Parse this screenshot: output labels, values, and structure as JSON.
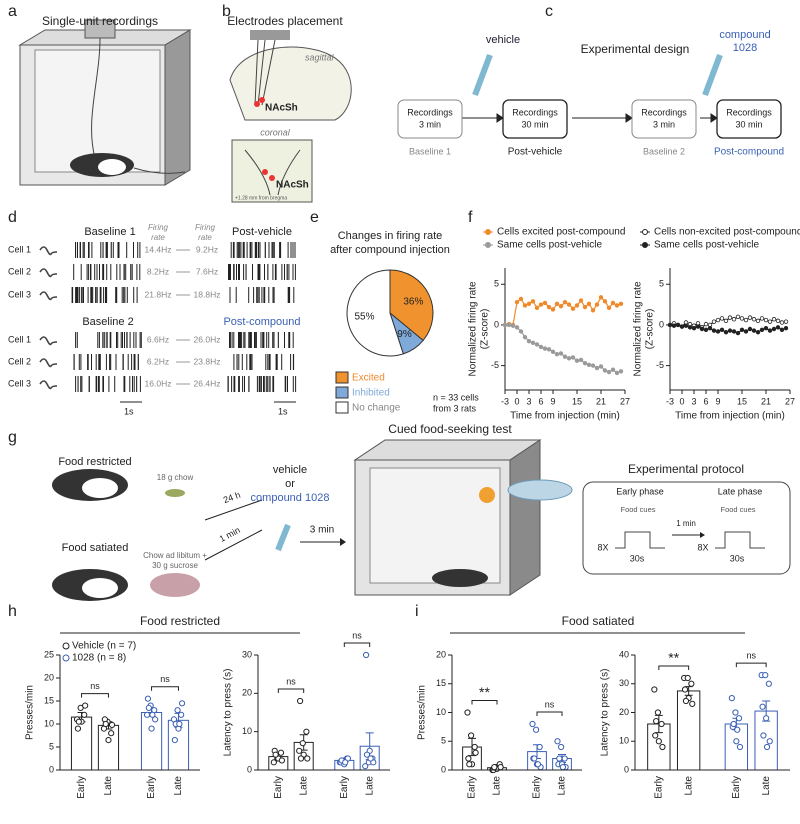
{
  "panel_labels": [
    "a",
    "b",
    "c",
    "d",
    "e",
    "f",
    "g",
    "h",
    "i"
  ],
  "a": {
    "title": "Single-unit recordings"
  },
  "b": {
    "title": "Electrodes placement",
    "sagittal": "sagittal",
    "coronal": "coronal",
    "region": "NAcSh",
    "region2": "NAcSh",
    "coords": "+1.28 mm from bregma"
  },
  "c": {
    "title": "Experimental design",
    "boxes": [
      [
        "Recordings",
        "3 min"
      ],
      [
        "Recordings",
        "30 min"
      ],
      [
        "Recordings",
        "3 min"
      ],
      [
        "Recordings",
        "30 min"
      ]
    ],
    "captions": [
      "Baseline 1",
      "Post-vehicle",
      "Baseline 2",
      "Post-compound"
    ],
    "vehicle": "vehicle",
    "compound": [
      "compound",
      "1028"
    ]
  },
  "d": {
    "headers": [
      "Baseline 1",
      "Post-vehicle",
      "Baseline 2",
      "Post-compound"
    ],
    "rate_headers": [
      [
        "Firing",
        "rate"
      ],
      [
        "Firing",
        "rate"
      ]
    ],
    "cells": [
      "Cell 1",
      "Cell 2",
      "Cell 3",
      "Cell 1",
      "Cell 2",
      "Cell 3"
    ],
    "rates_before": [
      "14.4Hz",
      "8.2Hz",
      "21.8Hz",
      "6.6Hz",
      "6.2Hz",
      "16.0Hz"
    ],
    "rates_after": [
      "9.2Hz",
      "7.6Hz",
      "18.8Hz",
      "26.0Hz",
      "23.8Hz",
      "26.4Hz"
    ],
    "scale": [
      "1s",
      "1s"
    ]
  },
  "g": {
    "restricted": "Food restricted",
    "chow": "18 g chow",
    "satiated": "Food satiated",
    "satiated_food": [
      "Chow ad libitum +",
      "30 g sucrose"
    ],
    "delay1": "24 h",
    "delay2": "1 min",
    "vehicle": "vehicle",
    "or": "or",
    "compound": "compound 1028",
    "wait": "3 min",
    "test": "Cued food-seeking test",
    "protocol": "Experimental protocol",
    "early": "Early phase",
    "late": "Late phase",
    "cues": [
      "Food cues",
      "Food cues"
    ],
    "gap": "1 min",
    "reps": [
      "8X",
      "8X"
    ],
    "dur": [
      "30s",
      "30s"
    ]
  },
  "h": {
    "title": "Food restricted"
  },
  "i": {
    "title": "Food satiated"
  },
  "chart_data": [
    {
      "type": "pie",
      "title": [
        "Changes in firing rate",
        "after compound injection"
      ],
      "categories": [
        "Excited",
        "Inhibited",
        "No change"
      ],
      "values": [
        36,
        9,
        55
      ],
      "value_labels": [
        "36%",
        "9%",
        "55%"
      ],
      "colors": [
        "#f0922e",
        "#7fa9d8",
        "#ffffff"
      ],
      "note": [
        "n = 33 cells",
        "from 3 rats"
      ]
    },
    {
      "type": "line",
      "ylabel": [
        "Normalized firing rate",
        "(Z-score)"
      ],
      "xlabel": "Time from injection (min)",
      "x": [
        -3,
        -2,
        -1,
        0,
        1,
        2,
        3,
        4,
        5,
        6,
        7,
        8,
        9,
        10,
        11,
        12,
        13,
        14,
        15,
        16,
        17,
        18,
        19,
        20,
        21,
        22,
        23,
        24,
        25,
        26
      ],
      "xlim": [
        -3,
        27
      ],
      "xticks": [
        -3,
        0,
        3,
        6,
        9,
        15,
        21,
        27
      ],
      "ylim": [
        -8,
        7
      ],
      "yticks": [
        -5,
        0,
        5
      ],
      "series": [
        {
          "name": "Cells excited post-compound",
          "color": "#f0892a",
          "filled": true,
          "values": [
            0,
            0.1,
            0,
            2.8,
            3.2,
            2.4,
            2.6,
            2.9,
            2.1,
            2.5,
            2.7,
            2.2,
            1.9,
            2.6,
            2.3,
            2.8,
            2.5,
            2.0,
            2.4,
            3.0,
            2.2,
            2.6,
            1.8,
            2.5,
            3.4,
            2.9,
            2.1,
            2.7,
            2.4,
            2.6
          ]
        },
        {
          "name": "Same cells post-vehicle",
          "color": "#9a9a9a",
          "filled": true,
          "values": [
            0,
            0,
            -0.1,
            -0.3,
            -0.8,
            -1.5,
            -2.0,
            -2.2,
            -2.4,
            -2.7,
            -2.9,
            -3.0,
            -3.3,
            -3.6,
            -3.5,
            -3.9,
            -4.1,
            -4.0,
            -4.4,
            -4.3,
            -4.7,
            -4.9,
            -5.0,
            -5.3,
            -5.1,
            -5.6,
            -5.8,
            -5.5,
            -5.9,
            -5.7
          ]
        }
      ]
    },
    {
      "type": "line",
      "ylabel": [
        "Normalized firing rate",
        "(Z-score)"
      ],
      "xlabel": "Time from injection (min)",
      "x": [
        -3,
        -2,
        -1,
        0,
        1,
        2,
        3,
        4,
        5,
        6,
        7,
        8,
        9,
        10,
        11,
        12,
        13,
        14,
        15,
        16,
        17,
        18,
        19,
        20,
        21,
        22,
        23,
        24,
        25,
        26
      ],
      "xlim": [
        -3,
        27
      ],
      "xticks": [
        -3,
        0,
        3,
        6,
        9,
        15,
        21,
        27
      ],
      "ylim": [
        -8,
        7
      ],
      "yticks": [
        -5,
        0,
        5
      ],
      "series": [
        {
          "name": "Cells non-excited post-compound",
          "color": "#222222",
          "filled": false,
          "values": [
            0,
            0.2,
            0,
            -0.2,
            0.3,
            0.1,
            -0.1,
            0.2,
            -0.3,
            0.1,
            0,
            0.4,
            0.6,
            0.8,
            0.5,
            0.9,
            0.7,
            1.0,
            0.8,
            0.6,
            0.9,
            0.7,
            0.5,
            0.8,
            0.6,
            0.4,
            0.7,
            0.5,
            0.3,
            0.4
          ]
        },
        {
          "name": "Same cells post-vehicle",
          "color": "#222222",
          "filled": true,
          "values": [
            0,
            -0.1,
            0,
            -0.2,
            -0.1,
            -0.3,
            -0.4,
            -0.2,
            -0.5,
            -0.6,
            -0.4,
            -0.7,
            -0.8,
            -0.6,
            -0.9,
            -0.7,
            -0.8,
            -1.0,
            -0.6,
            -0.8,
            -0.5,
            -0.7,
            -0.9,
            -0.6,
            -0.4,
            -0.7,
            -0.5,
            -0.3,
            -0.6,
            -0.4
          ]
        }
      ]
    },
    {
      "type": "bar",
      "ylabel": "Presses/min",
      "categories": [
        "Early",
        "Late"
      ],
      "ylim": [
        0,
        25
      ],
      "yticks": [
        0,
        5,
        10,
        15,
        20,
        25
      ],
      "annotations": [
        "ns",
        "ns"
      ],
      "legend": true,
      "series": [
        {
          "name": "Vehicle (n = 7)",
          "color": "#222222",
          "values": [
            11.5,
            9.7
          ],
          "errors": [
            1,
            0.8
          ],
          "points": [
            [
              11,
              13.5,
              12,
              9,
              10.5,
              14,
              10.5
            ],
            [
              9,
              10.5,
              8,
              11,
              6.5,
              9.8,
              10
            ]
          ]
        },
        {
          "name": "1028 (n = 8)",
          "color": "#3a5fb4",
          "values": [
            12.5,
            10.8
          ],
          "errors": [
            0.8,
            1.5
          ],
          "points": [
            [
              12,
              14,
              13,
              15.5,
              9,
              11,
              13.5,
              12
            ],
            [
              11,
              13,
              12,
              6.5,
              9,
              14.5,
              10,
              10
            ]
          ]
        }
      ]
    },
    {
      "type": "bar",
      "ylabel": "Latency to press (s)",
      "categories": [
        "Early",
        "Late"
      ],
      "ylim": [
        0,
        30
      ],
      "yticks": [
        0,
        10,
        20,
        30
      ],
      "annotations": [
        "ns",
        "ns"
      ],
      "series": [
        {
          "color": "#222222",
          "values": [
            3.5,
            7.2
          ],
          "errors": [
            0.7,
            2
          ],
          "points": [
            [
              2,
              3,
              4.5,
              5,
              3,
              2.5,
              4
            ],
            [
              5,
              7,
              10,
              18,
              4,
              3,
              3
            ]
          ]
        },
        {
          "color": "#3a5fb4",
          "values": [
            2.5,
            6.2
          ],
          "errors": [
            0.4,
            3.5
          ],
          "points": [
            [
              2,
              2.5,
              3,
              2,
              1.5,
              3,
              2.5,
              2
            ],
            [
              1,
              2,
              3,
              30,
              5,
              2,
              4,
              3
            ]
          ]
        }
      ]
    },
    {
      "type": "bar",
      "ylabel": "Presses/min",
      "categories": [
        "Early",
        "Late"
      ],
      "ylim": [
        0,
        20
      ],
      "yticks": [
        0,
        5,
        10,
        15,
        20
      ],
      "annotations": [
        "**",
        "ns"
      ],
      "series": [
        {
          "color": "#222222",
          "values": [
            4,
            0.4
          ],
          "errors": [
            1.5,
            0.2
          ],
          "points": [
            [
              10,
              6,
              4,
              2,
              1,
              3,
              1
            ],
            [
              0,
              0.5,
              1,
              0,
              0.2,
              0.5,
              0.5
            ]
          ]
        },
        {
          "color": "#3a5fb4",
          "values": [
            3.2,
            2
          ],
          "errors": [
            1.2,
            0.7
          ],
          "points": [
            [
              8,
              7,
              4,
              2,
              1,
              0.5,
              2,
              1
            ],
            [
              5,
              4,
              2,
              1,
              1,
              0.5,
              2,
              0.5
            ]
          ]
        }
      ]
    },
    {
      "type": "bar",
      "ylabel": "Latency to press (s)",
      "categories": [
        "Early",
        "Late"
      ],
      "ylim": [
        0,
        40
      ],
      "yticks": [
        0,
        10,
        20,
        30,
        40
      ],
      "annotations": [
        "**",
        "ns"
      ],
      "series": [
        {
          "color": "#222222",
          "values": [
            16,
            27.5
          ],
          "errors": [
            3,
            1.5
          ],
          "points": [
            [
              28,
              20,
              16,
              12,
              10,
              8,
              17
            ],
            [
              32,
              32,
              30,
              28,
              25,
              23,
              24
            ]
          ]
        },
        {
          "color": "#3a5fb4",
          "values": [
            16,
            20.5
          ],
          "errors": [
            2,
            3.5
          ],
          "points": [
            [
              25,
              20,
              18,
              15,
              10,
              8,
              16,
              14
            ],
            [
              33,
              33,
              30,
              22,
              18,
              10,
              12,
              8
            ]
          ]
        }
      ]
    }
  ]
}
